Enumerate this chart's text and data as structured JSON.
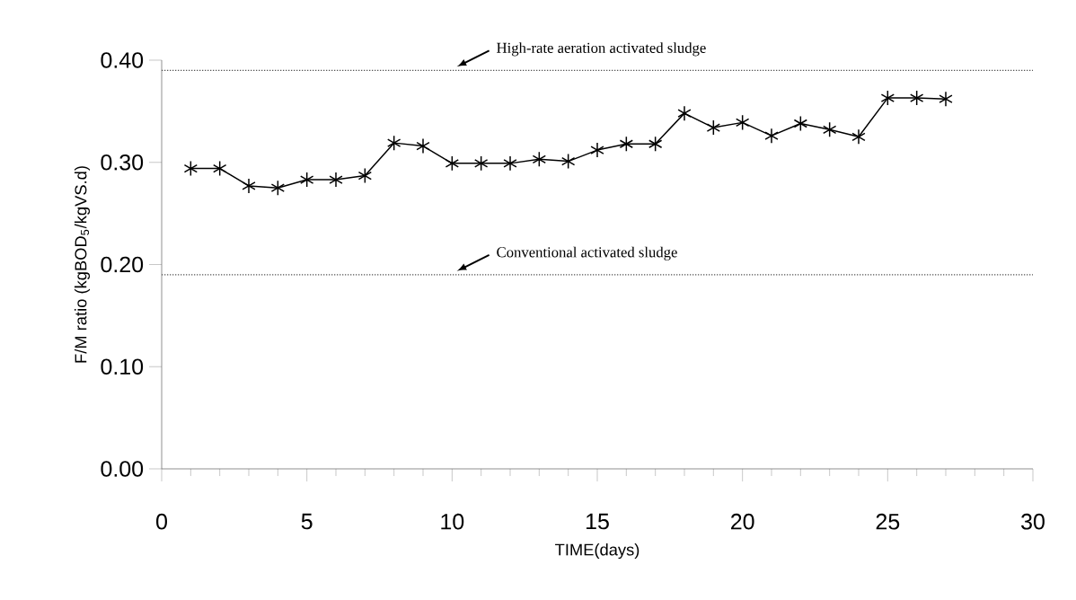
{
  "chart_data": {
    "type": "line",
    "xlabel": "TIME(days)",
    "ylabel": "F/M ratio (kgBOD$_{5}$/kgVS.d)",
    "x": [
      1,
      2,
      3,
      4,
      5,
      6,
      7,
      8,
      9,
      10,
      11,
      12,
      13,
      14,
      15,
      16,
      17,
      18,
      19,
      20,
      21,
      22,
      23,
      24,
      25,
      26,
      27
    ],
    "series": [
      {
        "color": "#000000",
        "values": [
          0.294,
          0.294,
          0.277,
          0.275,
          0.283,
          0.283,
          0.287,
          0.319,
          0.316,
          0.299,
          0.299,
          0.299,
          0.303,
          0.301,
          0.312,
          0.318,
          0.318,
          0.348,
          0.334,
          0.339,
          0.326,
          0.338,
          0.332,
          0.325,
          0.363,
          0.363,
          0.362
        ]
      }
    ],
    "xlim": [
      0,
      30
    ],
    "xticks": [
      0,
      5,
      10,
      15,
      20,
      25,
      30
    ],
    "ylim": [
      0,
      0.4
    ],
    "yticks": [
      {
        "value": 0,
        "label": "0.00"
      },
      {
        "value": 0.1,
        "label": "0.10"
      },
      {
        "value": 0.2,
        "label": "0.20"
      },
      {
        "value": 0.3,
        "label": "0.30"
      },
      {
        "value": 0.4,
        "label": "0.40"
      }
    ],
    "ref_lines": [
      {
        "axis": "y",
        "value": 0.39,
        "label": "High-rate aeration activated sludge",
        "color": "#555555",
        "line_style": "dotted"
      },
      {
        "axis": "y",
        "value": 0.19,
        "label": "Conventional activated sludge",
        "color": "#555555",
        "line_style": "dotted"
      }
    ],
    "marker": "cross",
    "line_style": "solid"
  }
}
